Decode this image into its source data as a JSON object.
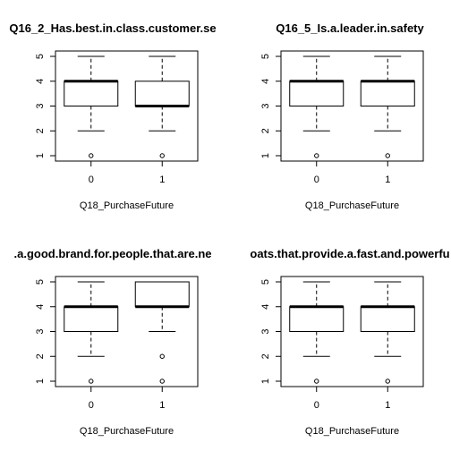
{
  "chart_data": [
    {
      "type": "boxplot",
      "title": "Q16_2_Has.best.in.class.customer.se",
      "xlabel": "Q18_PurchaseFuture",
      "ylabel": "",
      "categories": [
        "0",
        "1"
      ],
      "ylim": [
        1,
        5
      ],
      "yticks": [
        "1",
        "2",
        "3",
        "4",
        "5"
      ],
      "boxes": [
        {
          "category": "0",
          "whisker_low": 2,
          "q1": 3,
          "median": 4,
          "q3": 4,
          "whisker_high": 5,
          "outliers": [
            1
          ]
        },
        {
          "category": "1",
          "whisker_low": 2,
          "q1": 3,
          "median": 3,
          "q3": 4,
          "whisker_high": 5,
          "outliers": [
            1
          ]
        }
      ]
    },
    {
      "type": "boxplot",
      "title": "Q16_5_Is.a.leader.in.safety",
      "xlabel": "Q18_PurchaseFuture",
      "ylabel": "",
      "categories": [
        "0",
        "1"
      ],
      "ylim": [
        1,
        5
      ],
      "yticks": [
        "1",
        "2",
        "3",
        "4",
        "5"
      ],
      "boxes": [
        {
          "category": "0",
          "whisker_low": 2,
          "q1": 3,
          "median": 4,
          "q3": 4,
          "whisker_high": 5,
          "outliers": [
            1
          ]
        },
        {
          "category": "1",
          "whisker_low": 2,
          "q1": 3,
          "median": 4,
          "q3": 4,
          "whisker_high": 5,
          "outliers": [
            1
          ]
        }
      ]
    },
    {
      "type": "boxplot",
      "title": ".a.good.brand.for.people.that.are.ne",
      "xlabel": "Q18_PurchaseFuture",
      "ylabel": "",
      "categories": [
        "0",
        "1"
      ],
      "ylim": [
        1,
        5
      ],
      "yticks": [
        "1",
        "2",
        "3",
        "4",
        "5"
      ],
      "boxes": [
        {
          "category": "0",
          "whisker_low": 2,
          "q1": 3,
          "median": 4,
          "q3": 4,
          "whisker_high": 5,
          "outliers": [
            1
          ]
        },
        {
          "category": "1",
          "whisker_low": 3,
          "q1": 4,
          "median": 4,
          "q3": 5,
          "whisker_high": 5,
          "outliers": [
            2,
            1
          ]
        }
      ]
    },
    {
      "type": "boxplot",
      "title": "oats.that.provide.a.fast.and.powerfu",
      "xlabel": "Q18_PurchaseFuture",
      "ylabel": "",
      "categories": [
        "0",
        "1"
      ],
      "ylim": [
        1,
        5
      ],
      "yticks": [
        "1",
        "2",
        "3",
        "4",
        "5"
      ],
      "boxes": [
        {
          "category": "0",
          "whisker_low": 2,
          "q1": 3,
          "median": 4,
          "q3": 4,
          "whisker_high": 5,
          "outliers": [
            1
          ]
        },
        {
          "category": "1",
          "whisker_low": 2,
          "q1": 3,
          "median": 4,
          "q3": 4,
          "whisker_high": 5,
          "outliers": [
            1
          ]
        }
      ]
    }
  ]
}
